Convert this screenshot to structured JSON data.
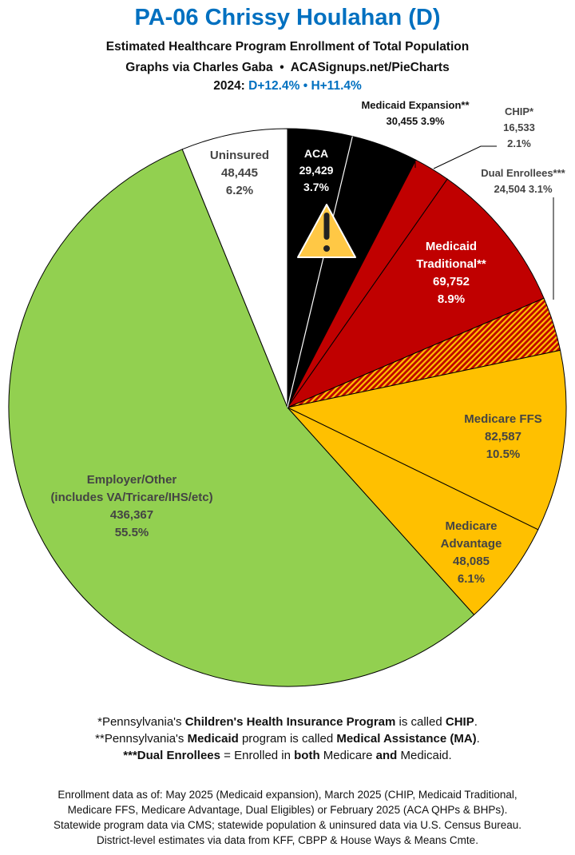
{
  "header": {
    "title": "PA-06 Chrissy Houlahan (D)",
    "subtitle": "Estimated Healthcare Program Enrollment of Total Population",
    "credit_left": "Graphs via Charles Gaba",
    "bullet": "•",
    "credit_right": "ACASignups.net/PieCharts",
    "year_label": "2024:",
    "d_margin": "D+12.4%",
    "h_margin": "H+11.4%"
  },
  "chart_data": {
    "type": "pie",
    "start": "top, clockwise",
    "slices": [
      {
        "name": "ACA",
        "value": 29429,
        "pct": "3.7%",
        "color": "#000000",
        "warning_icon": "warning-triangle-icon"
      },
      {
        "name": "Medicaid Expansion**",
        "value": 30455,
        "pct": "3.9%",
        "color": "#000000"
      },
      {
        "name": "CHIP*",
        "value": 16533,
        "pct": "2.1%",
        "color": "#C00000"
      },
      {
        "name": "Medicaid Traditional**",
        "value": 69752,
        "pct": "8.9%",
        "color": "#C00000"
      },
      {
        "name": "Dual Enrollees***",
        "value": 24504,
        "pct": "3.1%",
        "color": "#C00000",
        "pattern": "hatched red/yellow"
      },
      {
        "name": "Medicare FFS",
        "value": 82587,
        "pct": "10.5%",
        "color": "#FFC000"
      },
      {
        "name": "Medicare Advantage",
        "value": 48085,
        "pct": "6.1%",
        "color": "#FFC000"
      },
      {
        "name": "Employer/Other",
        "name2": "(includes VA/Tricare/IHS/etc)",
        "value": 436367,
        "pct": "55.5%",
        "color": "#92D050"
      },
      {
        "name": "Uninsured",
        "value": 48445,
        "pct": "6.2%",
        "color": "#FFFFFF"
      }
    ],
    "value_labels": [
      "29,429",
      "30,455",
      "16,533",
      "69,752",
      "24,504",
      "82,587",
      "48,085",
      "436,367",
      "48,445"
    ],
    "label_parts": {
      "med_trad_1": "Medicaid",
      "med_trad_2": "Traditional**",
      "adv_1": "Medicare",
      "adv_2": "Advantage"
    }
  },
  "notes": [
    {
      "pre": "*Pennsylvania's ",
      "b1": "Children's Health Insurance Program",
      "mid": " is called ",
      "b2": "CHIP",
      "post": "."
    },
    {
      "pre": "**Pennsylvania's ",
      "b1": "Medicaid",
      "mid": " program is called ",
      "b2": "Medical Assistance (MA)",
      "post": "."
    },
    {
      "b0": "***Dual Enrollees",
      "t1": " = Enrolled in ",
      "b1": "both",
      "t2": " Medicare ",
      "b2": "and",
      "t3": " Medicaid."
    }
  ],
  "footer": [
    "Enrollment data as of: May 2025 (Medicaid expansion), March 2025 (CHIP, Medicaid Traditional,",
    "Medicare FFS, Medicare Advantage, Dual Eligibles) or February 2025 (ACA QHPs & BHPs).",
    "Statewide program data via CMS; statewide population & uninsured data via U.S. Census Bureau.",
    "District-level estimates via data from KFF, CBPP & House Ways & Means Cmte."
  ]
}
